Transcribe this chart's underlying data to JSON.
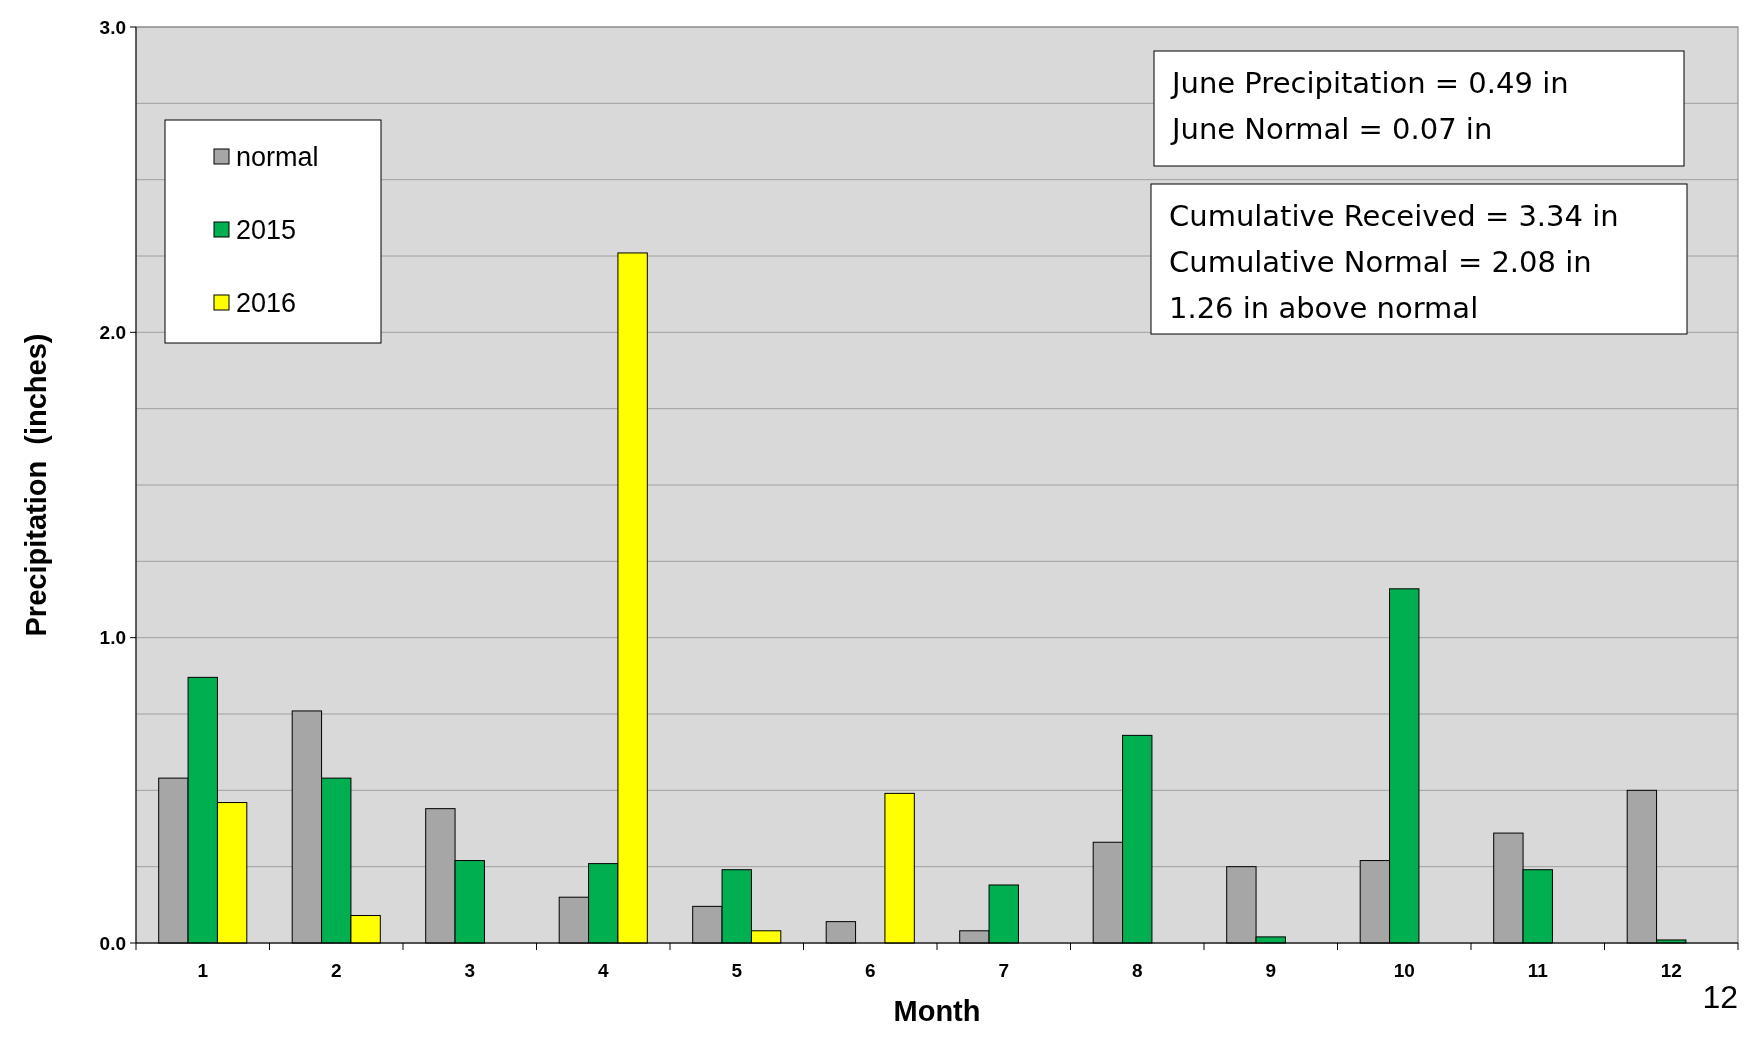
{
  "chart_data": {
    "type": "bar",
    "xlabel": "Month",
    "ylabel": "Precipitation  (inches)",
    "categories": [
      "1",
      "2",
      "3",
      "4",
      "5",
      "6",
      "7",
      "8",
      "9",
      "10",
      "11",
      "12"
    ],
    "series": [
      {
        "name": "normal",
        "color": "#a6a6a6",
        "values": [
          0.54,
          0.76,
          0.44,
          0.15,
          0.12,
          0.07,
          0.04,
          0.33,
          0.25,
          0.27,
          0.36,
          0.5
        ]
      },
      {
        "name": "2015",
        "color": "#00b050",
        "values": [
          0.87,
          0.54,
          0.27,
          0.26,
          0.24,
          null,
          0.19,
          0.68,
          0.02,
          1.16,
          0.24,
          0.01
        ]
      },
      {
        "name": "2016",
        "color": "#ffff00",
        "values": [
          0.46,
          0.09,
          null,
          2.26,
          0.04,
          0.49,
          null,
          null,
          null,
          null,
          null,
          null
        ]
      }
    ],
    "ylim": [
      0,
      3
    ],
    "yticks": [
      {
        "value": 0,
        "label": "0.0"
      },
      {
        "value": 0.25,
        "label": null
      },
      {
        "value": 0.5,
        "label": null
      },
      {
        "value": 0.75,
        "label": null
      },
      {
        "value": 1,
        "label": "1.0"
      },
      {
        "value": 1.25,
        "label": null
      },
      {
        "value": 1.5,
        "label": null
      },
      {
        "value": 1.75,
        "label": null
      },
      {
        "value": 2,
        "label": "2.0"
      },
      {
        "value": 2.25,
        "label": null
      },
      {
        "value": 2.5,
        "label": null
      },
      {
        "value": 2.75,
        "label": null
      },
      {
        "value": 3,
        "label": "3.0"
      }
    ],
    "grid": "y",
    "legend": "top left",
    "annotations": [
      "June Precipitation = 0.49 in\nJune Normal = 0.07 in",
      "Cumulative Received = 3.34 in\nCumulative Normal = 2.08 in\n1.26 in above normal",
      "12"
    ]
  }
}
